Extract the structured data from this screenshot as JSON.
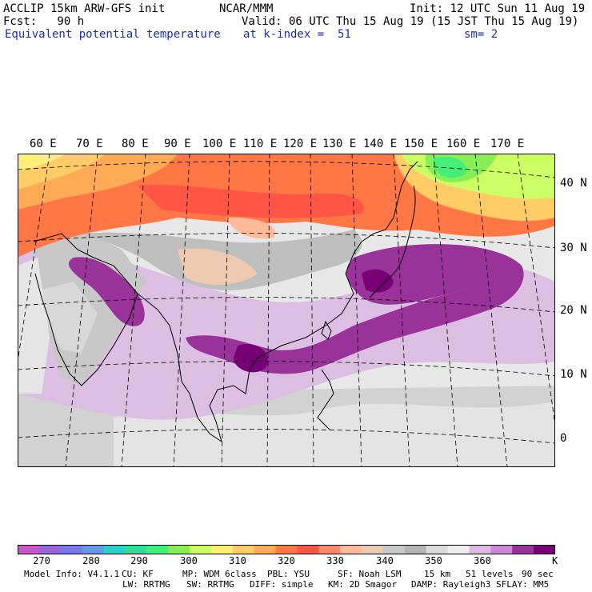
{
  "header": {
    "model": "ACCLIP 15km ARW-GFS init",
    "org": "NCAR/MMM",
    "init": "Init: 12 UTC Sun 11 Aug 19",
    "fcst": "Fcst:   90 h",
    "valid": "Valid: 06 UTC Thu 15 Aug 19 (15 JST Thu 15 Aug 19)",
    "field": "Equivalent potential temperature",
    "level": "at k-index =  51",
    "smooth": "sm= 2"
  },
  "map": {
    "lon_labels": [
      "60 E",
      "70 E",
      "80 E",
      "90 E",
      "100 E",
      "110 E",
      "120 E",
      "130 E",
      "140 E",
      "150 E",
      "160 E",
      "170 E"
    ],
    "lat_labels": [
      "40 N",
      "30 N",
      "20 N",
      "10 N",
      "0"
    ],
    "regions": [
      "india",
      "arabian-sea",
      "bay-of-bengal",
      "southeast-asia",
      "china",
      "mongolia",
      "japan",
      "philippines",
      "pacific-ocean"
    ]
  },
  "colorbar": {
    "colors": [
      "#cc55cc",
      "#9966dd",
      "#7777ee",
      "#6699ee",
      "#33cccc",
      "#33dd99",
      "#44ee77",
      "#88ee55",
      "#ccff66",
      "#ffee77",
      "#ffcc66",
      "#ffaa55",
      "#ff7744",
      "#ff5544",
      "#ff8866",
      "#ffbb99",
      "#eecbb0",
      "#c8c8c8",
      "#b4b4b4",
      "#dcdcdc",
      "#eeeeee",
      "#e0b8e4",
      "#cc88d8",
      "#993399",
      "#770077"
    ],
    "tick_labels": [
      "270",
      "280",
      "290",
      "300",
      "310",
      "320",
      "330",
      "340",
      "350",
      "360"
    ],
    "unit": "K"
  },
  "footer": {
    "line1": {
      "model_info": "Model Info: V4.1.1",
      "cu": "CU: KF",
      "mp": "MP: WDM 6class",
      "pbl": "PBL: YSU",
      "sf": "SF: Noah LSM",
      "res": "15 km",
      "levels": "51 levels",
      "dt": "90 sec"
    },
    "line2": {
      "lw": "LW: RRTMG",
      "sw": "SW: RRTMG",
      "diff": "DIFF: simple",
      "km": "KM: 2D Smagor",
      "damp": "DAMP: Rayleigh3",
      "sflay": "SFLAY: MM5"
    }
  }
}
